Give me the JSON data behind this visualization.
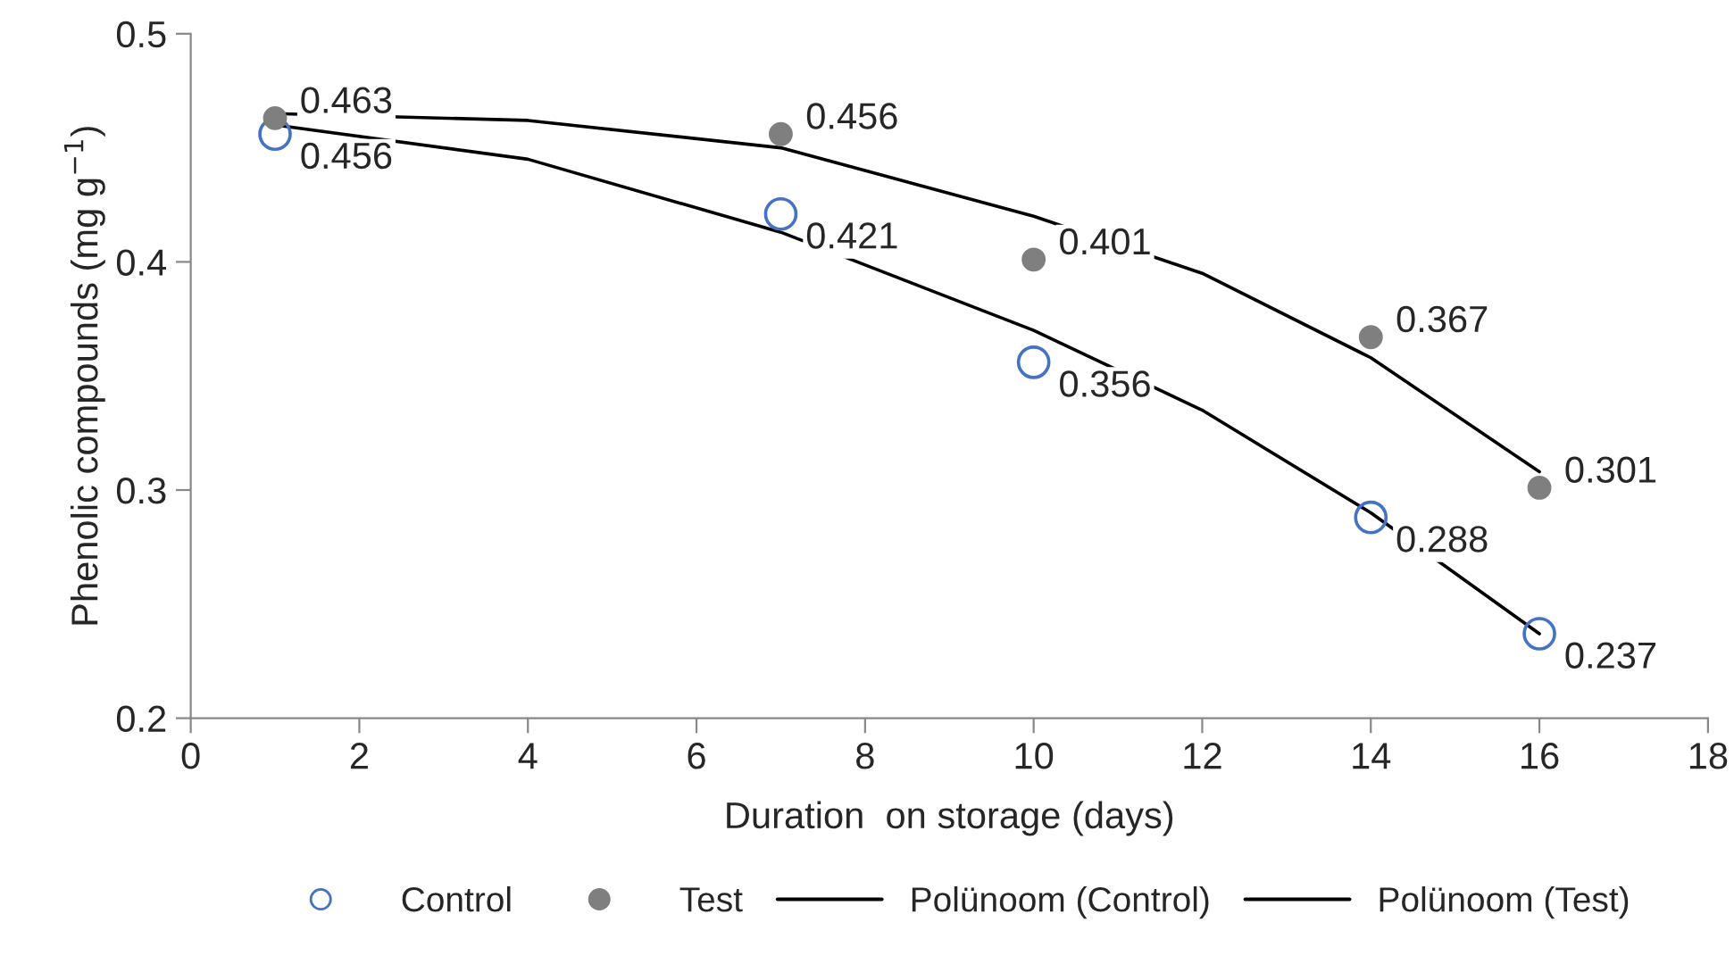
{
  "chart_data": {
    "type": "scatter",
    "xlabel": "Duration  on storage (days)",
    "ylabel": "Phenolic compounds (mg g$^{−1}$)",
    "x": [
      1,
      7,
      10,
      14,
      16
    ],
    "series": [
      {
        "name": "Control",
        "marker": "circle",
        "color": "#4472c4",
        "values": [
          0.456,
          0.421,
          0.356,
          0.288,
          0.237
        ],
        "data_labels": true
      },
      {
        "name": "Test",
        "marker": "circle",
        "color": "#7f7f7f",
        "values": [
          0.463,
          0.456,
          0.401,
          0.367,
          0.301
        ],
        "data_labels": true
      },
      {
        "name": "Polünoom (Control)",
        "type": "line",
        "color": "#000000",
        "line_style": "solid",
        "x": [
          1,
          4,
          7,
          10,
          12,
          14,
          16
        ],
        "values": [
          0.46,
          0.445,
          0.413,
          0.37,
          0.335,
          0.29,
          0.237
        ]
      },
      {
        "name": "Polünoom (Test)",
        "type": "line",
        "color": "#000000",
        "line_style": "solid",
        "x": [
          1,
          4,
          7,
          10,
          12,
          14,
          16
        ],
        "values": [
          0.465,
          0.462,
          0.45,
          0.42,
          0.395,
          0.358,
          0.308
        ]
      }
    ],
    "xlim": [
      0,
      18
    ],
    "xticks": [
      0,
      2,
      4,
      6,
      8,
      10,
      12,
      14,
      16,
      18
    ],
    "ylim": [
      0.2,
      0.5
    ],
    "yticks": [
      0.2,
      0.3,
      0.4,
      0.5
    ],
    "grid": false,
    "legend": "bottom"
  }
}
